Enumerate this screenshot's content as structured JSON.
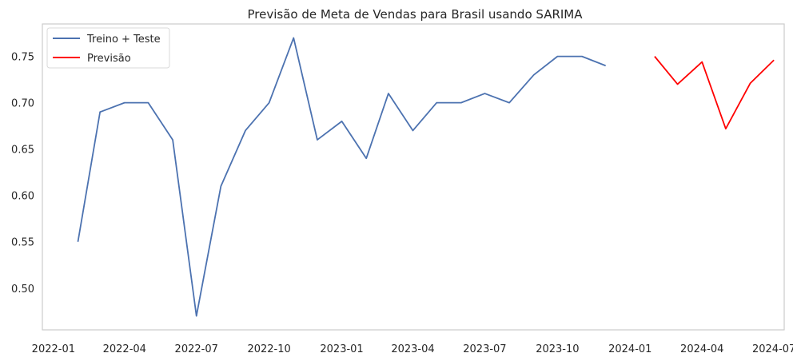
{
  "chart_data": {
    "type": "line",
    "title": "Previsão de Meta de Vendas para Brasil usando SARIMA",
    "xlabel": "",
    "ylabel": "",
    "grid": false,
    "legend_position": "top-left",
    "xlim": [
      "2021-12-18",
      "2024-07-14"
    ],
    "ylim": [
      0.455,
      0.785
    ],
    "x_ticks": [
      "2022-01",
      "2022-04",
      "2022-07",
      "2022-10",
      "2023-01",
      "2023-04",
      "2023-07",
      "2023-10",
      "2024-01",
      "2024-04",
      "2024-07"
    ],
    "y_ticks": [
      "0.50",
      "0.55",
      "0.60",
      "0.65",
      "0.70",
      "0.75"
    ],
    "series": [
      {
        "name": "Treino + Teste",
        "color": "#4c72b0",
        "x": [
          "2022-02",
          "2022-03",
          "2022-04",
          "2022-05",
          "2022-06",
          "2022-07",
          "2022-08",
          "2022-09",
          "2022-10",
          "2022-11",
          "2022-12",
          "2023-01",
          "2023-02",
          "2023-03",
          "2023-04",
          "2023-05",
          "2023-06",
          "2023-07",
          "2023-08",
          "2023-09",
          "2023-10",
          "2023-11",
          "2023-12"
        ],
        "values": [
          0.55,
          0.69,
          0.7,
          0.7,
          0.66,
          0.47,
          0.61,
          0.67,
          0.7,
          0.77,
          0.66,
          0.68,
          0.64,
          0.71,
          0.67,
          0.7,
          0.7,
          0.71,
          0.7,
          0.73,
          0.75,
          0.75,
          0.74
        ]
      },
      {
        "name": "Previsão",
        "color": "#ff0000",
        "x": [
          "2024-02",
          "2024-03",
          "2024-04",
          "2024-05",
          "2024-06",
          "2024-07"
        ],
        "values": [
          0.75,
          0.72,
          0.744,
          0.672,
          0.721,
          0.746
        ]
      }
    ]
  }
}
